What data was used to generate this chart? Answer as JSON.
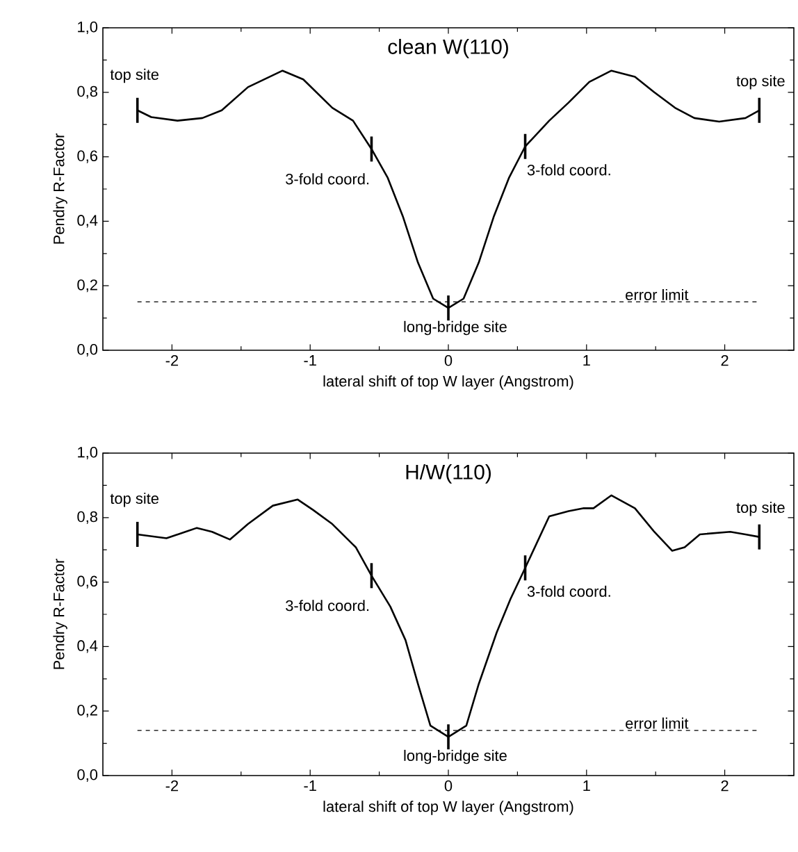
{
  "chart_data": [
    {
      "type": "line",
      "title": "clean W(110)",
      "xlabel": "lateral shift of top W layer (Angstrom)",
      "ylabel": "Pendry R-Factor",
      "x": [
        -2.25,
        -2.15,
        -1.96,
        -1.78,
        -1.64,
        -1.45,
        -1.2,
        -1.05,
        -0.84,
        -0.69,
        -0.556,
        -0.44,
        -0.33,
        -0.22,
        -0.11,
        0,
        0.11,
        0.22,
        0.33,
        0.44,
        0.556,
        0.73,
        0.87,
        1.02,
        1.18,
        1.35,
        1.49,
        1.64,
        1.78,
        1.96,
        2.15,
        2.25
      ],
      "series": [
        {
          "color": "#000000",
          "values": [
            0.744,
            0.723,
            0.712,
            0.72,
            0.744,
            0.816,
            0.867,
            0.84,
            0.752,
            0.712,
            0.624,
            0.536,
            0.416,
            0.272,
            0.16,
            0.131,
            0.16,
            0.272,
            0.416,
            0.536,
            0.632,
            0.712,
            0.768,
            0.832,
            0.867,
            0.848,
            0.8,
            0.752,
            0.72,
            0.709,
            0.72,
            0.744
          ]
        }
      ],
      "xlim": [
        -2.5,
        2.5
      ],
      "ylim": [
        0,
        1
      ],
      "xticks": [
        -2,
        -1,
        0,
        1,
        2
      ],
      "yticks": [
        {
          "value": 0,
          "label": "0,0"
        },
        {
          "value": 0.2,
          "label": "0,2"
        },
        {
          "value": 0.4,
          "label": "0,4"
        },
        {
          "value": 0.6,
          "label": "0,6"
        },
        {
          "value": 0.8,
          "label": "0,8"
        },
        {
          "value": 1,
          "label": "1,0"
        }
      ],
      "ref_lines": [
        {
          "axis": "y",
          "value": 0.15,
          "label": "error limit",
          "line_style": "dashed"
        }
      ],
      "annotations": [
        {
          "text": "top site",
          "x": -2.25,
          "y": 0.744
        },
        {
          "text": "top site",
          "x": 2.25,
          "y": 0.744
        },
        {
          "text": "3-fold coord.",
          "x": -0.556,
          "y": 0.624
        },
        {
          "text": "3-fold coord.",
          "x": 0.556,
          "y": 0.632
        },
        {
          "text": "long-bridge site",
          "x": 0,
          "y": 0.131
        }
      ]
    },
    {
      "type": "line",
      "title": "H/W(110)",
      "xlabel": "lateral shift of top W layer (Angstrom)",
      "ylabel": "Pendry R-Factor",
      "x": [
        -2.25,
        -2.04,
        -1.82,
        -1.71,
        -1.58,
        -1.45,
        -1.27,
        -1.09,
        -0.98,
        -0.84,
        -0.67,
        -0.556,
        -0.42,
        -0.31,
        -0.22,
        -0.13,
        0,
        0.13,
        0.22,
        0.35,
        0.45,
        0.556,
        0.73,
        0.87,
        0.98,
        1.05,
        1.18,
        1.35,
        1.49,
        1.62,
        1.71,
        1.82,
        2.04,
        2.15,
        2.25
      ],
      "series": [
        {
          "color": "#000000",
          "values": [
            0.748,
            0.736,
            0.768,
            0.756,
            0.732,
            0.78,
            0.837,
            0.856,
            0.824,
            0.78,
            0.708,
            0.62,
            0.524,
            0.42,
            0.284,
            0.155,
            0.12,
            0.155,
            0.284,
            0.444,
            0.548,
            0.644,
            0.804,
            0.82,
            0.829,
            0.829,
            0.869,
            0.829,
            0.756,
            0.697,
            0.708,
            0.748,
            0.756,
            0.748,
            0.74
          ]
        }
      ],
      "xlim": [
        -2.5,
        2.5
      ],
      "ylim": [
        0,
        1
      ],
      "xticks": [
        -2,
        -1,
        0,
        1,
        2
      ],
      "yticks": [
        {
          "value": 0,
          "label": "0,0"
        },
        {
          "value": 0.2,
          "label": "0,2"
        },
        {
          "value": 0.4,
          "label": "0,4"
        },
        {
          "value": 0.6,
          "label": "0,6"
        },
        {
          "value": 0.8,
          "label": "0,8"
        },
        {
          "value": 1,
          "label": "1,0"
        }
      ],
      "ref_lines": [
        {
          "axis": "y",
          "value": 0.14,
          "label": "error limit",
          "line_style": "dashed"
        }
      ],
      "annotations": [
        {
          "text": "top site",
          "x": -2.25,
          "y": 0.748
        },
        {
          "text": "top site",
          "x": 2.25,
          "y": 0.74
        },
        {
          "text": "3-fold coord.",
          "x": -0.556,
          "y": 0.62
        },
        {
          "text": "3-fold coord.",
          "x": 0.556,
          "y": 0.644
        },
        {
          "text": "long-bridge site",
          "x": 0,
          "y": 0.12
        }
      ]
    }
  ]
}
